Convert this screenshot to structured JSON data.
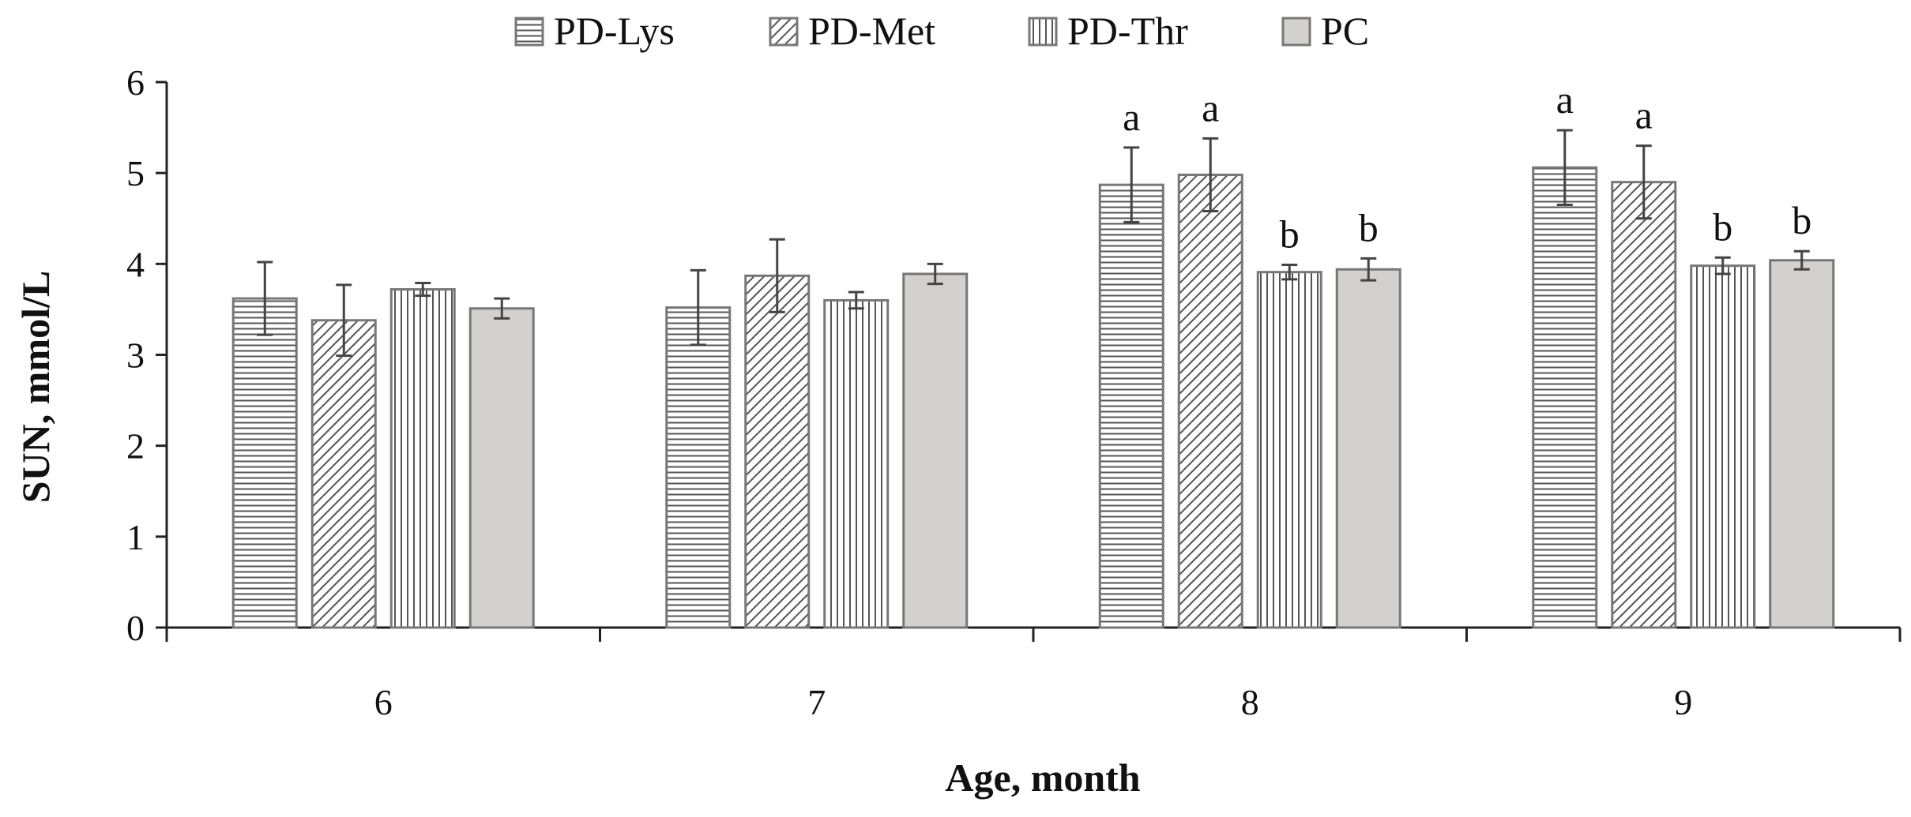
{
  "chart_data": {
    "type": "bar",
    "title": "",
    "xlabel": "Age, month",
    "ylabel": "SUN, mmol/L",
    "categories": [
      "6",
      "7",
      "8",
      "9"
    ],
    "ylim": [
      0,
      6
    ],
    "yticks": [
      "0",
      "1",
      "2",
      "3",
      "4",
      "5",
      "6"
    ],
    "grid": false,
    "legend_position": "top-center",
    "series": [
      {
        "name": "PD-Lys",
        "pattern": "horizontal-lines",
        "values": [
          3.62,
          3.52,
          4.87,
          5.06
        ],
        "errors": [
          0.4,
          0.41,
          0.41,
          0.41
        ],
        "letters": [
          "",
          "",
          "a",
          "a"
        ]
      },
      {
        "name": "PD-Met",
        "pattern": "diagonal-lines",
        "values": [
          3.38,
          3.87,
          4.98,
          4.9
        ],
        "errors": [
          0.39,
          0.4,
          0.4,
          0.4
        ],
        "letters": [
          "",
          "",
          "a",
          "a"
        ]
      },
      {
        "name": "PD-Thr",
        "pattern": "vertical-lines",
        "values": [
          3.72,
          3.6,
          3.91,
          3.98
        ],
        "errors": [
          0.07,
          0.09,
          0.08,
          0.09
        ],
        "letters": [
          "",
          "",
          "b",
          "b"
        ]
      },
      {
        "name": "PC",
        "pattern": "solid-gray",
        "values": [
          3.51,
          3.89,
          3.94,
          4.04
        ],
        "errors": [
          0.11,
          0.11,
          0.12,
          0.1
        ],
        "letters": [
          "",
          "",
          "b",
          "b"
        ]
      }
    ],
    "colors": {
      "bar_fill": "#d3d1cf",
      "bar_stroke": "#777777",
      "hatch": "#555555",
      "axis": "#222222",
      "error": "#444444"
    }
  }
}
